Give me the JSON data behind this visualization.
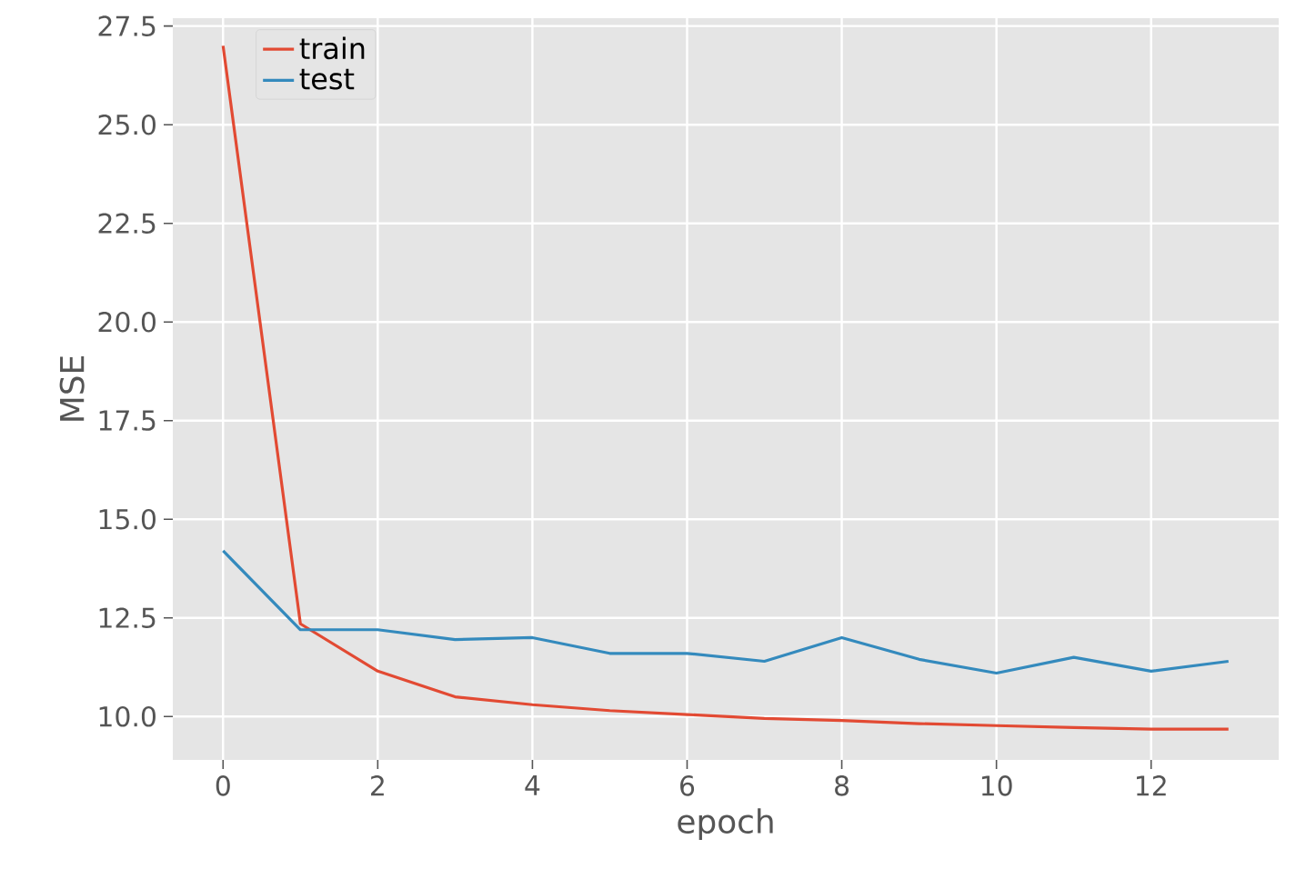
{
  "chart_data": {
    "type": "line",
    "xlabel": "epoch",
    "ylabel": "MSE",
    "x": [
      0,
      1,
      2,
      3,
      4,
      5,
      6,
      7,
      8,
      9,
      10,
      11,
      12,
      13
    ],
    "series": [
      {
        "name": "train",
        "color": "#e24a33",
        "values": [
          27.0,
          12.35,
          11.15,
          10.5,
          10.3,
          10.15,
          10.05,
          9.95,
          9.9,
          9.82,
          9.77,
          9.72,
          9.68,
          9.68
        ]
      },
      {
        "name": "test",
        "color": "#348abd",
        "values": [
          14.2,
          12.2,
          12.2,
          11.95,
          12.0,
          11.6,
          11.6,
          11.4,
          12.0,
          11.45,
          11.1,
          11.5,
          11.15,
          11.4
        ]
      }
    ],
    "xlim": [
      -0.65,
      13.65
    ],
    "ylim": [
      8.9,
      27.7
    ],
    "xticks": [
      0,
      2,
      4,
      6,
      8,
      10,
      12
    ],
    "yticks": [
      {
        "value": 10,
        "label": "10.0"
      },
      {
        "value": 12.5,
        "label": "12.5"
      },
      {
        "value": 15,
        "label": "15.0"
      },
      {
        "value": 17.5,
        "label": "17.5"
      },
      {
        "value": 20,
        "label": "20.0"
      },
      {
        "value": 22.5,
        "label": "22.5"
      },
      {
        "value": 25,
        "label": "25.0"
      },
      {
        "value": 27.5,
        "label": "27.5"
      }
    ],
    "grid": true,
    "legend": "top left",
    "marker": "none",
    "line_style": "solid"
  }
}
